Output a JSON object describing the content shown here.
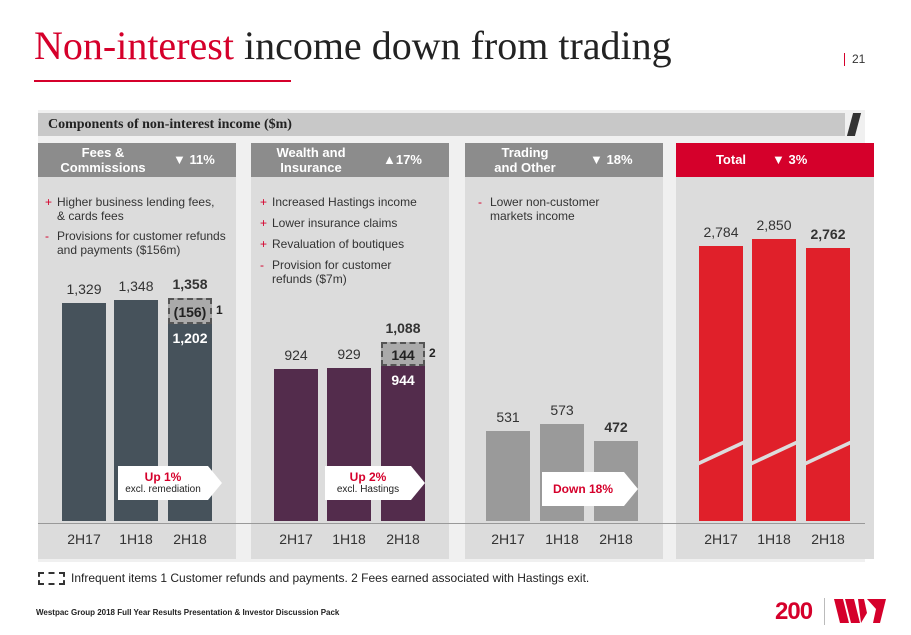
{
  "header": {
    "title_highlight": "Non-interest",
    "title_rest": " income down from trading",
    "page_number": "21"
  },
  "section_header": "Components of non-interest income ($m)",
  "panels": [
    {
      "name_line1": "Fees &",
      "name_line2": "Commissions",
      "change": "▼ 11%",
      "bullets": [
        {
          "sym": "+",
          "text": "Higher business lending fees,"
        },
        {
          "sym": "",
          "text": "& cards fees"
        },
        {
          "sym": "-",
          "text": "Provisions for customer refunds"
        },
        {
          "sym": "",
          "text": "and payments ($156m)"
        }
      ],
      "arrow_main": "Up 1%",
      "arrow_sub": "excl. remediation"
    },
    {
      "name_line1": "Wealth and",
      "name_line2": "Insurance",
      "change": "▲17%",
      "bullets": [
        {
          "sym": "+",
          "text": "Increased Hastings income"
        },
        {
          "sym": "+",
          "text": "Lower insurance claims"
        },
        {
          "sym": "+",
          "text": "Revaluation of boutiques"
        },
        {
          "sym": "-",
          "text": "Provision for customer"
        },
        {
          "sym": "",
          "text": "refunds ($7m)"
        }
      ],
      "arrow_main": "Up 2%",
      "arrow_sub": "excl. Hastings"
    },
    {
      "name_line1": "Trading",
      "name_line2": "and Other",
      "change": "▼ 18%",
      "bullets": [
        {
          "sym": "-",
          "text": "Lower non-customer"
        },
        {
          "sym": "",
          "text": "markets income"
        }
      ],
      "arrow_main": "Down 18%",
      "arrow_sub": ""
    },
    {
      "name_line1": "Total",
      "name_line2": "",
      "change": "▼ 3%",
      "bullets": []
    }
  ],
  "chart_data": {
    "type": "bar",
    "title": "Components of non-interest income ($m)",
    "categories": [
      "2H17",
      "1H18",
      "2H18"
    ],
    "series": [
      {
        "name": "Fees & Commissions",
        "values": [
          1329,
          1348,
          1358
        ],
        "labels": [
          "1,329",
          "1,348",
          "1,358"
        ],
        "excl_value": 1202,
        "excl_label": "1,202",
        "infrequent_label": "(156)",
        "note": "1",
        "color": "#46525b"
      },
      {
        "name": "Wealth and Insurance",
        "values": [
          924,
          929,
          1088
        ],
        "labels": [
          "924",
          "929",
          "1,088"
        ],
        "excl_value": 944,
        "excl_label": "944",
        "infrequent_label": "144",
        "note": "2",
        "color": "#532c4c"
      },
      {
        "name": "Trading and Other",
        "values": [
          531,
          573,
          472
        ],
        "labels": [
          "531",
          "573",
          "472"
        ],
        "color": "#9a9a9a"
      },
      {
        "name": "Total",
        "values": [
          2784,
          2850,
          2762
        ],
        "labels": [
          "2,784",
          "2,850",
          "2,762"
        ],
        "color": "#e0202a"
      }
    ]
  },
  "legend": "Infrequent items 1 Customer refunds and payments. 2 Fees earned associated with Hastings exit.",
  "footer": "Westpac Group 2018 Full Year Results Presentation & Investor Discussion Pack",
  "logo_text": "200",
  "colors": {
    "accent": "#d5002b",
    "header_grey": "#8c8c8c"
  }
}
